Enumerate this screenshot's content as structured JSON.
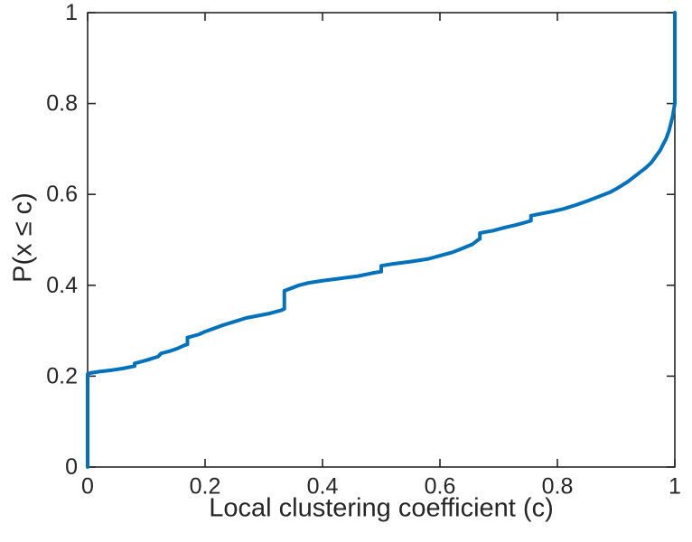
{
  "figure": {
    "background": "#ffffff"
  },
  "chart_data": {
    "type": "line",
    "subtype": "empirical-cdf",
    "title": "",
    "xlabel": "Local clustering coefficient (c)",
    "ylabel": "P(x ≤ c)",
    "xlim": [
      0,
      1
    ],
    "ylim": [
      0,
      1
    ],
    "xticks": [
      0,
      0.2,
      0.4,
      0.6,
      0.8,
      1
    ],
    "xtick_labels": [
      "0",
      "0.2",
      "0.4",
      "0.6",
      "0.8",
      "1"
    ],
    "yticks": [
      0,
      0.2,
      0.4,
      0.6,
      0.8,
      1
    ],
    "ytick_labels": [
      "0",
      "0.2",
      "0.4",
      "0.6",
      "0.8",
      "1"
    ],
    "grid": false,
    "legend": "none",
    "box": true,
    "tick_direction": "in",
    "line_color": "#0072BD",
    "line_width": 4,
    "axis_color": "#262626",
    "series": [
      {
        "name": "empirical CDF of local clustering coefficient",
        "points": [
          [
            0,
            0
          ],
          [
            0,
            0.205
          ],
          [
            0.005,
            0.207
          ],
          [
            0.02,
            0.21
          ],
          [
            0.04,
            0.213
          ],
          [
            0.06,
            0.217
          ],
          [
            0.08,
            0.222
          ],
          [
            0.08,
            0.228
          ],
          [
            0.1,
            0.235
          ],
          [
            0.12,
            0.243
          ],
          [
            0.125,
            0.25
          ],
          [
            0.14,
            0.255
          ],
          [
            0.155,
            0.262
          ],
          [
            0.165,
            0.268
          ],
          [
            0.17,
            0.27
          ],
          [
            0.17,
            0.285
          ],
          [
            0.19,
            0.292
          ],
          [
            0.2,
            0.298
          ],
          [
            0.215,
            0.305
          ],
          [
            0.23,
            0.312
          ],
          [
            0.25,
            0.32
          ],
          [
            0.27,
            0.328
          ],
          [
            0.29,
            0.333
          ],
          [
            0.31,
            0.338
          ],
          [
            0.33,
            0.345
          ],
          [
            0.335,
            0.348
          ],
          [
            0.335,
            0.388
          ],
          [
            0.35,
            0.395
          ],
          [
            0.36,
            0.4
          ],
          [
            0.375,
            0.405
          ],
          [
            0.4,
            0.41
          ],
          [
            0.43,
            0.415
          ],
          [
            0.46,
            0.42
          ],
          [
            0.49,
            0.428
          ],
          [
            0.5,
            0.43
          ],
          [
            0.5,
            0.443
          ],
          [
            0.52,
            0.447
          ],
          [
            0.55,
            0.452
          ],
          [
            0.58,
            0.458
          ],
          [
            0.6,
            0.465
          ],
          [
            0.62,
            0.472
          ],
          [
            0.64,
            0.482
          ],
          [
            0.655,
            0.49
          ],
          [
            0.665,
            0.5
          ],
          [
            0.668,
            0.502
          ],
          [
            0.668,
            0.515
          ],
          [
            0.69,
            0.52
          ],
          [
            0.71,
            0.527
          ],
          [
            0.73,
            0.533
          ],
          [
            0.75,
            0.54
          ],
          [
            0.755,
            0.542
          ],
          [
            0.755,
            0.553
          ],
          [
            0.77,
            0.557
          ],
          [
            0.79,
            0.562
          ],
          [
            0.81,
            0.568
          ],
          [
            0.83,
            0.576
          ],
          [
            0.85,
            0.585
          ],
          [
            0.87,
            0.595
          ],
          [
            0.89,
            0.605
          ],
          [
            0.9,
            0.612
          ],
          [
            0.91,
            0.62
          ],
          [
            0.92,
            0.628
          ],
          [
            0.93,
            0.638
          ],
          [
            0.94,
            0.648
          ],
          [
            0.95,
            0.658
          ],
          [
            0.96,
            0.67
          ],
          [
            0.97,
            0.688
          ],
          [
            0.975,
            0.697
          ],
          [
            0.98,
            0.71
          ],
          [
            0.985,
            0.722
          ],
          [
            0.99,
            0.74
          ],
          [
            0.993,
            0.755
          ],
          [
            0.996,
            0.77
          ],
          [
            0.998,
            0.785
          ],
          [
            1,
            0.8
          ],
          [
            1,
            1
          ]
        ]
      }
    ]
  }
}
